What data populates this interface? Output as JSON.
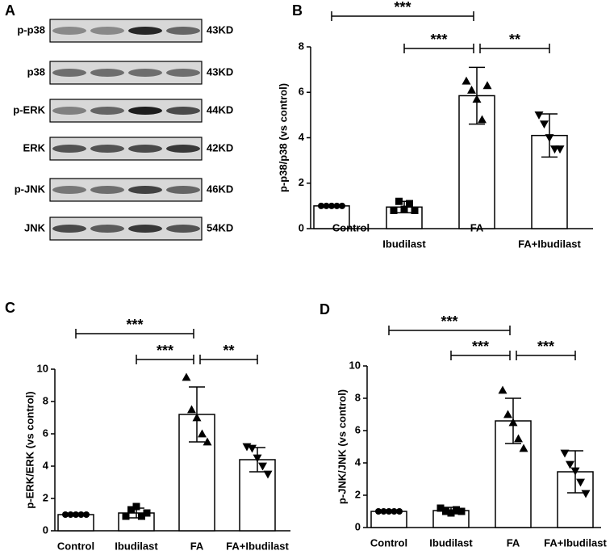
{
  "blot": {
    "letter": "A",
    "rows": [
      {
        "label": "p-p38",
        "size": "43KD"
      },
      {
        "label": "p38",
        "size": "43KD"
      },
      {
        "label": "p-ERK",
        "size": "44KD"
      },
      {
        "label": "ERK",
        "size": "42KD"
      },
      {
        "label": "p-JNK",
        "size": "46KD"
      },
      {
        "label": "JNK",
        "size": "54KD"
      }
    ]
  },
  "chart_data": [
    {
      "type": "bar",
      "letter": "B",
      "ylabel": "p-p38/p38  (vs control)",
      "categories": [
        "Control",
        "Ibudilast",
        "FA",
        "FA+Ibudilast"
      ],
      "values": [
        1.0,
        0.95,
        5.85,
        4.1
      ],
      "errors": [
        0,
        0.25,
        1.25,
        0.95
      ],
      "points": [
        [
          1,
          1,
          1,
          1,
          1
        ],
        [
          0.8,
          1.2,
          0.85,
          1.1,
          0.8
        ],
        [
          6.5,
          6.1,
          5.7,
          4.8,
          6.3
        ],
        [
          5.0,
          4.6,
          4.0,
          3.5,
          3.5
        ]
      ],
      "markers": [
        "circle",
        "square",
        "triangle",
        "triangle-down"
      ],
      "ylim": [
        0,
        8
      ],
      "yticks": [
        0,
        2,
        4,
        6,
        8
      ],
      "color": "#000000",
      "annotations": [
        {
          "from": 0,
          "to": 2,
          "text": "***"
        },
        {
          "from": 1,
          "to": 2,
          "text": "***"
        },
        {
          "from": 2,
          "to": 3,
          "text": "**"
        }
      ]
    },
    {
      "type": "bar",
      "letter": "C",
      "ylabel": "p-ERK/ERK  (vs control)",
      "categories": [
        "Control",
        "Ibudilast",
        "FA",
        "FA+Ibudilast"
      ],
      "values": [
        1.0,
        1.1,
        7.2,
        4.4
      ],
      "errors": [
        0,
        0.3,
        1.7,
        0.75
      ],
      "points": [
        [
          1,
          1,
          1,
          1,
          1
        ],
        [
          0.9,
          1.3,
          1.5,
          0.9,
          1.1
        ],
        [
          9.5,
          7.5,
          7.0,
          6.0,
          5.5
        ],
        [
          5.2,
          5.1,
          4.5,
          4.0,
          3.5
        ]
      ],
      "markers": [
        "circle",
        "square",
        "triangle",
        "triangle-down"
      ],
      "ylim": [
        0,
        10
      ],
      "yticks": [
        0,
        2,
        4,
        6,
        8,
        10
      ],
      "color": "#000000",
      "annotations": [
        {
          "from": 0,
          "to": 2,
          "text": "***"
        },
        {
          "from": 1,
          "to": 2,
          "text": "***"
        },
        {
          "from": 2,
          "to": 3,
          "text": "**"
        }
      ]
    },
    {
      "type": "bar",
      "letter": "D",
      "ylabel": "p-JNK/JNK  (vs control)",
      "categories": [
        "Control",
        "Ibudilast",
        "FA",
        "FA+Ibudilast"
      ],
      "values": [
        1.0,
        1.05,
        6.6,
        3.45
      ],
      "errors": [
        0,
        0.2,
        1.4,
        1.3
      ],
      "points": [
        [
          1,
          1,
          1,
          1,
          1
        ],
        [
          1.2,
          1.0,
          0.9,
          1.1,
          1.0
        ],
        [
          8.5,
          7.0,
          6.5,
          5.5,
          4.9
        ],
        [
          4.6,
          3.9,
          3.5,
          2.8,
          2.1
        ]
      ],
      "markers": [
        "circle",
        "square",
        "triangle",
        "triangle-down"
      ],
      "ylim": [
        0,
        10
      ],
      "yticks": [
        0,
        2,
        4,
        6,
        8,
        10
      ],
      "color": "#000000",
      "annotations": [
        {
          "from": 0,
          "to": 2,
          "text": "***"
        },
        {
          "from": 1,
          "to": 2,
          "text": "***"
        },
        {
          "from": 2,
          "to": 3,
          "text": "***"
        }
      ]
    }
  ]
}
